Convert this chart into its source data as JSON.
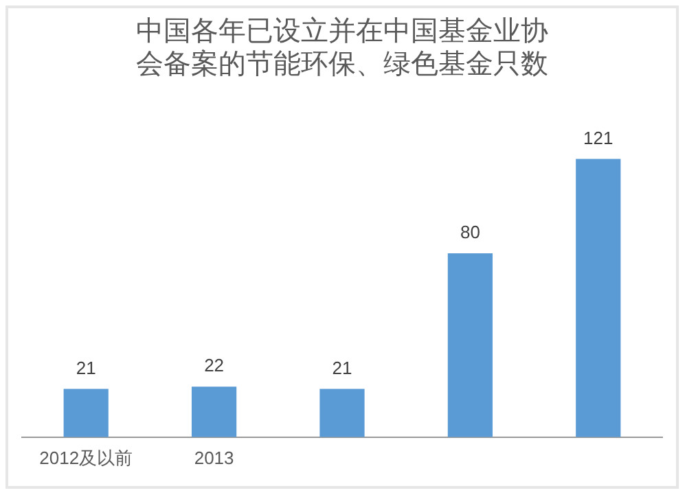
{
  "chart_data": {
    "type": "bar",
    "title": "中国各年已设立并在中国基金业协会备案的节能环保、绿色基金只数",
    "categories": [
      "2012及以前",
      "2013",
      null,
      null,
      null
    ],
    "values": [
      21,
      22,
      21,
      80,
      121
    ],
    "color": "#5b9bd5",
    "data_labels": true,
    "grid": false,
    "legend": false
  }
}
